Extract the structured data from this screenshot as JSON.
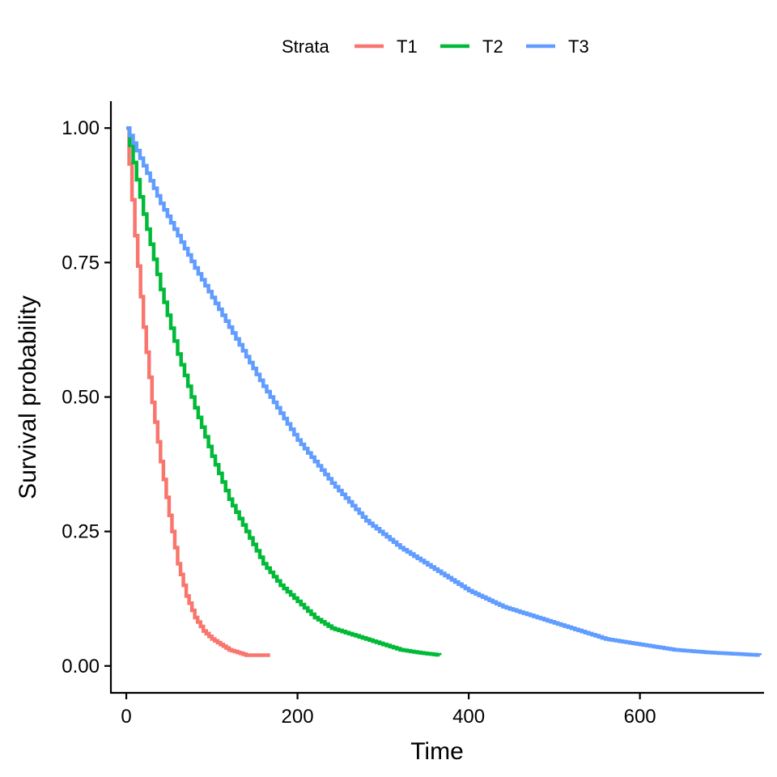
{
  "chart_data": {
    "type": "line",
    "step": true,
    "title": "",
    "xlabel": "Time",
    "ylabel": "Survival probability",
    "xlim": [
      -18,
      745
    ],
    "ylim": [
      -0.05,
      1.05
    ],
    "x_ticks": [
      0,
      200,
      400,
      600
    ],
    "x_tick_labels": [
      "0",
      "200",
      "400",
      "600"
    ],
    "y_ticks": [
      0,
      0.25,
      0.5,
      0.75,
      1.0
    ],
    "y_tick_labels": [
      "0.00",
      "0.25",
      "0.50",
      "0.75",
      "1.00"
    ],
    "grid": false,
    "legend": {
      "title": "Strata",
      "position": "top"
    },
    "series": [
      {
        "name": "T1",
        "color": "#F8766D",
        "points": [
          [
            0,
            1.0
          ],
          [
            10,
            0.8
          ],
          [
            20,
            0.63
          ],
          [
            30,
            0.49
          ],
          [
            40,
            0.38
          ],
          [
            50,
            0.28
          ],
          [
            60,
            0.19
          ],
          [
            70,
            0.13
          ],
          [
            80,
            0.09
          ],
          [
            90,
            0.065
          ],
          [
            100,
            0.05
          ],
          [
            110,
            0.04
          ],
          [
            120,
            0.03
          ],
          [
            130,
            0.025
          ],
          [
            140,
            0.02
          ],
          [
            168,
            0.02
          ]
        ]
      },
      {
        "name": "T2",
        "color": "#00BA38",
        "points": [
          [
            0,
            1.0
          ],
          [
            20,
            0.84
          ],
          [
            40,
            0.7
          ],
          [
            60,
            0.58
          ],
          [
            80,
            0.48
          ],
          [
            100,
            0.39
          ],
          [
            120,
            0.31
          ],
          [
            140,
            0.25
          ],
          [
            160,
            0.19
          ],
          [
            180,
            0.15
          ],
          [
            200,
            0.12
          ],
          [
            220,
            0.09
          ],
          [
            240,
            0.07
          ],
          [
            260,
            0.06
          ],
          [
            280,
            0.05
          ],
          [
            300,
            0.04
          ],
          [
            320,
            0.03
          ],
          [
            340,
            0.025
          ],
          [
            366,
            0.02
          ]
        ]
      },
      {
        "name": "T3",
        "color": "#619CFF",
        "points": [
          [
            0,
            1.0
          ],
          [
            40,
            0.86
          ],
          [
            80,
            0.74
          ],
          [
            120,
            0.63
          ],
          [
            160,
            0.52
          ],
          [
            200,
            0.42
          ],
          [
            240,
            0.34
          ],
          [
            280,
            0.27
          ],
          [
            320,
            0.22
          ],
          [
            360,
            0.18
          ],
          [
            400,
            0.14
          ],
          [
            440,
            0.11
          ],
          [
            480,
            0.09
          ],
          [
            520,
            0.07
          ],
          [
            560,
            0.05
          ],
          [
            600,
            0.04
          ],
          [
            640,
            0.03
          ],
          [
            680,
            0.025
          ],
          [
            740,
            0.02
          ]
        ]
      }
    ]
  }
}
